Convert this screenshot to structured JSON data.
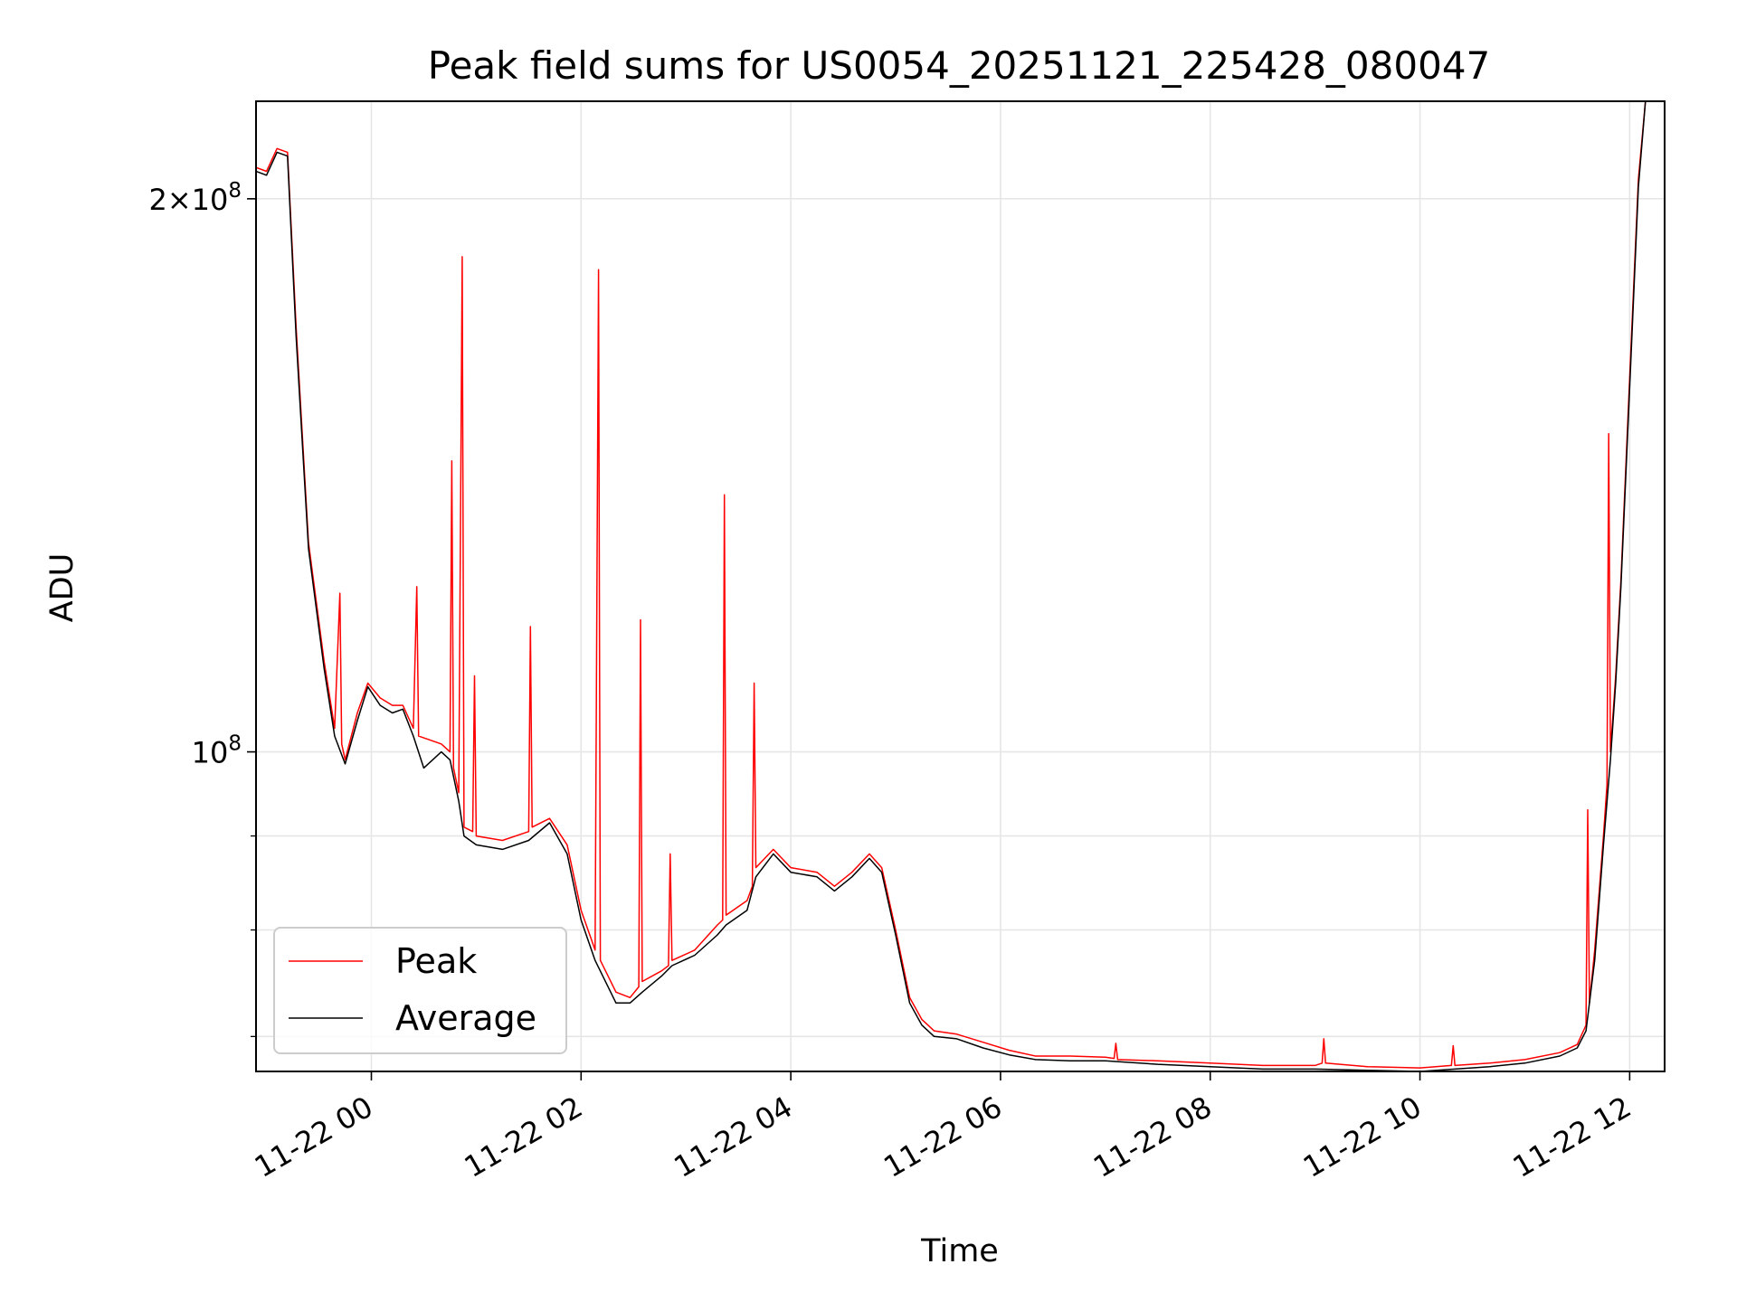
{
  "chart_data": {
    "type": "line",
    "title": "Peak field sums for US0054_20251121_225428_080047",
    "xlabel": "Time",
    "ylabel": "ADU",
    "yscale": "log",
    "xlim": [
      "2025-11-21 22:54",
      "2025-11-22 12:20"
    ],
    "ylim": [
      67000000,
      226000000
    ],
    "grid": true,
    "legend": "lower-left",
    "x_ticks": [
      "11-22 00",
      "11-22 02",
      "11-22 04",
      "11-22 06",
      "11-22 08",
      "11-22 10",
      "11-22 12"
    ],
    "y_ticks": [
      {
        "label": "2×10",
        "exp": "8",
        "value": 200000000
      },
      {
        "label": "10",
        "exp": "8",
        "value": 100000000
      }
    ],
    "series": [
      {
        "name": "Peak",
        "color": "#ff0000",
        "points": [
          [
            "2025-11-21 22:54",
            208000000
          ],
          [
            "2025-11-21 23:00",
            207000000
          ],
          [
            "2025-11-21 23:06",
            213000000
          ],
          [
            "2025-11-21 23:12",
            212000000
          ],
          [
            "2025-11-21 23:17",
            170000000
          ],
          [
            "2025-11-21 23:24",
            130000000
          ],
          [
            "2025-11-21 23:33",
            112000000
          ],
          [
            "2025-11-21 23:39",
            103000000
          ],
          [
            "2025-11-21 23:42",
            122000000
          ],
          [
            "2025-11-21 23:43",
            101000000
          ],
          [
            "2025-11-21 23:45",
            99000000
          ],
          [
            "2025-11-21 23:52",
            105000000
          ],
          [
            "2025-11-21 23:58",
            109000000
          ],
          [
            "2025-11-22 00:05",
            107000000
          ],
          [
            "2025-11-22 00:12",
            106000000
          ],
          [
            "2025-11-22 00:18",
            106000000
          ],
          [
            "2025-11-22 00:24",
            103000000
          ],
          [
            "2025-11-22 00:26",
            123000000
          ],
          [
            "2025-11-22 00:27",
            102000000
          ],
          [
            "2025-11-22 00:40",
            101000000
          ],
          [
            "2025-11-22 00:45",
            100000000
          ],
          [
            "2025-11-22 00:46",
            144000000
          ],
          [
            "2025-11-22 00:47",
            98000000
          ],
          [
            "2025-11-22 00:50",
            95000000
          ],
          [
            "2025-11-22 00:52",
            186000000
          ],
          [
            "2025-11-22 00:53",
            91000000
          ],
          [
            "2025-11-22 00:58",
            90500000
          ],
          [
            "2025-11-22 00:59",
            110000000
          ],
          [
            "2025-11-22 01:00",
            90000000
          ],
          [
            "2025-11-22 01:15",
            89500000
          ],
          [
            "2025-11-22 01:30",
            90500000
          ],
          [
            "2025-11-22 01:31",
            117000000
          ],
          [
            "2025-11-22 01:32",
            91000000
          ],
          [
            "2025-11-22 01:42",
            92000000
          ],
          [
            "2025-11-22 01:52",
            89000000
          ],
          [
            "2025-11-22 02:00",
            82000000
          ],
          [
            "2025-11-22 02:08",
            78000000
          ],
          [
            "2025-11-22 02:10",
            183000000
          ],
          [
            "2025-11-22 02:11",
            77000000
          ],
          [
            "2025-11-22 02:20",
            74000000
          ],
          [
            "2025-11-22 02:28",
            73500000
          ],
          [
            "2025-11-22 02:33",
            74500000
          ],
          [
            "2025-11-22 02:34",
            118000000
          ],
          [
            "2025-11-22 02:35",
            75000000
          ],
          [
            "2025-11-22 02:46",
            76000000
          ],
          [
            "2025-11-22 02:50",
            76500000
          ],
          [
            "2025-11-22 02:51",
            88000000
          ],
          [
            "2025-11-22 02:52",
            77000000
          ],
          [
            "2025-11-22 03:05",
            78000000
          ],
          [
            "2025-11-22 03:18",
            80500000
          ],
          [
            "2025-11-22 03:21",
            81000000
          ],
          [
            "2025-11-22 03:22",
            138000000
          ],
          [
            "2025-11-22 03:23",
            81500000
          ],
          [
            "2025-11-22 03:35",
            83000000
          ],
          [
            "2025-11-22 03:38",
            84500000
          ],
          [
            "2025-11-22 03:39",
            109000000
          ],
          [
            "2025-11-22 03:40",
            86500000
          ],
          [
            "2025-11-22 03:50",
            88500000
          ],
          [
            "2025-11-22 04:00",
            86500000
          ],
          [
            "2025-11-22 04:15",
            86000000
          ],
          [
            "2025-11-22 04:25",
            84500000
          ],
          [
            "2025-11-22 04:35",
            86000000
          ],
          [
            "2025-11-22 04:45",
            88000000
          ],
          [
            "2025-11-22 04:52",
            86500000
          ],
          [
            "2025-11-22 05:00",
            80000000
          ],
          [
            "2025-11-22 05:08",
            73500000
          ],
          [
            "2025-11-22 05:15",
            71500000
          ],
          [
            "2025-11-22 05:22",
            70500000
          ],
          [
            "2025-11-22 05:35",
            70200000
          ],
          [
            "2025-11-22 05:50",
            69500000
          ],
          [
            "2025-11-22 06:05",
            68800000
          ],
          [
            "2025-11-22 06:20",
            68300000
          ],
          [
            "2025-11-22 06:40",
            68300000
          ],
          [
            "2025-11-22 07:00",
            68200000
          ],
          [
            "2025-11-22 07:05",
            68100000
          ],
          [
            "2025-11-22 07:06",
            69400000
          ],
          [
            "2025-11-22 07:07",
            68000000
          ],
          [
            "2025-11-22 07:30",
            67900000
          ],
          [
            "2025-11-22 08:00",
            67700000
          ],
          [
            "2025-11-22 08:30",
            67500000
          ],
          [
            "2025-11-22 09:00",
            67500000
          ],
          [
            "2025-11-22 09:04",
            67700000
          ],
          [
            "2025-11-22 09:05",
            69800000
          ],
          [
            "2025-11-22 09:06",
            67700000
          ],
          [
            "2025-11-22 09:30",
            67400000
          ],
          [
            "2025-11-22 10:00",
            67300000
          ],
          [
            "2025-11-22 10:18",
            67500000
          ],
          [
            "2025-11-22 10:19",
            69200000
          ],
          [
            "2025-11-22 10:20",
            67500000
          ],
          [
            "2025-11-22 10:40",
            67700000
          ],
          [
            "2025-11-22 11:00",
            68000000
          ],
          [
            "2025-11-22 11:20",
            68600000
          ],
          [
            "2025-11-22 11:30",
            69300000
          ],
          [
            "2025-11-22 11:35",
            71000000
          ],
          [
            "2025-11-22 11:36",
            93000000
          ],
          [
            "2025-11-22 11:37",
            73000000
          ],
          [
            "2025-11-22 11:40",
            78000000
          ],
          [
            "2025-11-22 11:45",
            90000000
          ],
          [
            "2025-11-22 11:47",
            96000000
          ],
          [
            "2025-11-22 11:48",
            149000000
          ],
          [
            "2025-11-22 11:49",
            100000000
          ],
          [
            "2025-11-22 11:52",
            110000000
          ],
          [
            "2025-11-22 11:55",
            124000000
          ],
          [
            "2025-11-22 12:00",
            160000000
          ],
          [
            "2025-11-22 12:05",
            205000000
          ],
          [
            "2025-11-22 12:09",
            226000000
          ]
        ]
      },
      {
        "name": "Average",
        "color": "#000000",
        "points": [
          [
            "2025-11-21 22:54",
            207000000
          ],
          [
            "2025-11-21 23:00",
            206000000
          ],
          [
            "2025-11-21 23:06",
            212000000
          ],
          [
            "2025-11-21 23:12",
            211000000
          ],
          [
            "2025-11-21 23:17",
            168000000
          ],
          [
            "2025-11-21 23:24",
            129000000
          ],
          [
            "2025-11-21 23:33",
            111000000
          ],
          [
            "2025-11-21 23:39",
            102000000
          ],
          [
            "2025-11-21 23:45",
            98500000
          ],
          [
            "2025-11-21 23:52",
            104000000
          ],
          [
            "2025-11-21 23:58",
            108500000
          ],
          [
            "2025-11-22 00:05",
            106000000
          ],
          [
            "2025-11-22 00:12",
            105000000
          ],
          [
            "2025-11-22 00:18",
            105500000
          ],
          [
            "2025-11-22 00:24",
            102000000
          ],
          [
            "2025-11-22 00:30",
            98000000
          ],
          [
            "2025-11-22 00:40",
            100000000
          ],
          [
            "2025-11-22 00:45",
            99000000
          ],
          [
            "2025-11-22 00:50",
            94000000
          ],
          [
            "2025-11-22 00:53",
            90000000
          ],
          [
            "2025-11-22 01:00",
            89000000
          ],
          [
            "2025-11-22 01:15",
            88500000
          ],
          [
            "2025-11-22 01:30",
            89500000
          ],
          [
            "2025-11-22 01:42",
            91500000
          ],
          [
            "2025-11-22 01:52",
            88000000
          ],
          [
            "2025-11-22 02:00",
            81000000
          ],
          [
            "2025-11-22 02:08",
            77000000
          ],
          [
            "2025-11-22 02:20",
            73000000
          ],
          [
            "2025-11-22 02:28",
            73000000
          ],
          [
            "2025-11-22 02:35",
            74000000
          ],
          [
            "2025-11-22 02:46",
            75500000
          ],
          [
            "2025-11-22 02:52",
            76500000
          ],
          [
            "2025-11-22 03:05",
            77500000
          ],
          [
            "2025-11-22 03:18",
            79500000
          ],
          [
            "2025-11-22 03:23",
            80500000
          ],
          [
            "2025-11-22 03:35",
            82000000
          ],
          [
            "2025-11-22 03:40",
            85500000
          ],
          [
            "2025-11-22 03:50",
            88000000
          ],
          [
            "2025-11-22 04:00",
            86000000
          ],
          [
            "2025-11-22 04:15",
            85500000
          ],
          [
            "2025-11-22 04:25",
            84000000
          ],
          [
            "2025-11-22 04:35",
            85500000
          ],
          [
            "2025-11-22 04:45",
            87500000
          ],
          [
            "2025-11-22 04:52",
            86000000
          ],
          [
            "2025-11-22 05:00",
            79500000
          ],
          [
            "2025-11-22 05:08",
            73000000
          ],
          [
            "2025-11-22 05:15",
            71000000
          ],
          [
            "2025-11-22 05:22",
            70000000
          ],
          [
            "2025-11-22 05:35",
            69800000
          ],
          [
            "2025-11-22 05:50",
            69000000
          ],
          [
            "2025-11-22 06:05",
            68400000
          ],
          [
            "2025-11-22 06:20",
            68000000
          ],
          [
            "2025-11-22 06:40",
            67900000
          ],
          [
            "2025-11-22 07:00",
            67900000
          ],
          [
            "2025-11-22 07:30",
            67600000
          ],
          [
            "2025-11-22 08:00",
            67400000
          ],
          [
            "2025-11-22 08:30",
            67200000
          ],
          [
            "2025-11-22 09:00",
            67200000
          ],
          [
            "2025-11-22 09:30",
            67100000
          ],
          [
            "2025-11-22 10:00",
            67000000
          ],
          [
            "2025-11-22 10:20",
            67200000
          ],
          [
            "2025-11-22 10:40",
            67400000
          ],
          [
            "2025-11-22 11:00",
            67700000
          ],
          [
            "2025-11-22 11:20",
            68300000
          ],
          [
            "2025-11-22 11:30",
            69000000
          ],
          [
            "2025-11-22 11:35",
            70500000
          ],
          [
            "2025-11-22 11:40",
            77000000
          ],
          [
            "2025-11-22 11:45",
            89000000
          ],
          [
            "2025-11-22 11:49",
            99000000
          ],
          [
            "2025-11-22 11:52",
            109000000
          ],
          [
            "2025-11-22 11:55",
            123000000
          ],
          [
            "2025-11-22 12:00",
            158000000
          ],
          [
            "2025-11-22 12:05",
            203000000
          ],
          [
            "2025-11-22 12:09",
            226000000
          ]
        ]
      }
    ]
  }
}
